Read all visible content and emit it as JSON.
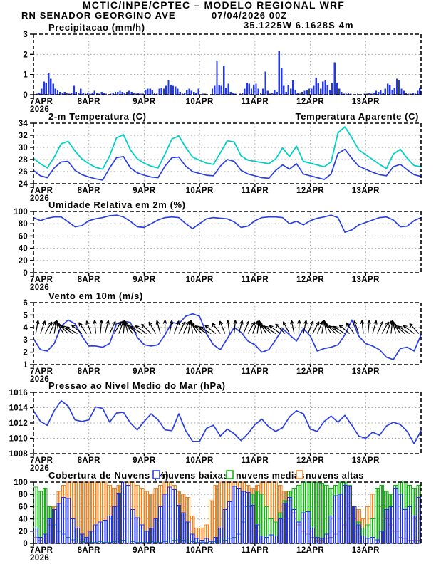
{
  "header": {
    "title": "MCTIC/INPE/CPTEC – MODELO REGIONAL WRF",
    "station": "RN SENADOR GEORGINO AVE",
    "run_datetime": "07/04/2026 00Z",
    "coords": "35.1225W 6.1628S 4m"
  },
  "colors": {
    "header_blue": "#2323e0",
    "orange_text": "#f07d1e",
    "line_blue": "#2b3fe0",
    "cyan": "#00cfc3",
    "bar_blue": "#2438e2",
    "cloud_blue": "#2333dd",
    "cloud_green": "#14b414",
    "green_text": "#00b400",
    "cloud_orange": "#f08424",
    "grid": "#a0a0a0",
    "axis": "#000000"
  },
  "x_axis": {
    "day_labels": [
      "7APR",
      "8APR",
      "9APR",
      "10APR",
      "11APR",
      "12APR",
      "13APR"
    ],
    "year": "2026",
    "total_hours": 168
  },
  "chart_data": [
    {
      "type": "bar",
      "title": "Precipitacao (mm/h)",
      "ylim": [
        0,
        3
      ],
      "yticks": [
        0,
        1,
        2,
        3
      ],
      "step_hours": 1,
      "values": [
        0,
        0.05,
        0.1,
        0.3,
        0.65,
        0.6,
        1.1,
        0.8,
        0.55,
        0.3,
        0.25,
        0.15,
        0.1,
        0.15,
        0.1,
        0.05,
        0.1,
        0.45,
        0.15,
        0.1,
        0.3,
        0.1,
        0.05,
        0.1,
        0.05,
        0.1,
        0.2,
        0.1,
        0.05,
        0.15,
        0.1,
        0.05,
        0,
        0.05,
        0.1,
        0.15,
        0.15,
        0.2,
        0.15,
        0.1,
        0.15,
        0.2,
        0.15,
        0.1,
        0.05,
        0.1,
        0.05,
        0.05,
        0.25,
        0.3,
        0.3,
        0.25,
        0.1,
        0.05,
        0.3,
        0.35,
        0.3,
        0.45,
        0.75,
        0.5,
        0.45,
        0.4,
        0.3,
        0.15,
        0.05,
        0.1,
        0.25,
        0.3,
        0.2,
        0.15,
        0.1,
        0.3,
        0,
        0.05,
        0.05,
        0,
        0,
        0.3,
        0.45,
        1.7,
        0.5,
        0.45,
        1.45,
        0.35,
        0.55,
        0.15,
        0.1,
        0.05,
        0,
        0.05,
        0.1,
        0.3,
        0.6,
        0.55,
        0.3,
        0.5,
        0.55,
        0.3,
        0.1,
        0.3,
        1.15,
        0.2,
        0.05,
        0.1,
        0.25,
        0.15,
        2.15,
        1.3,
        0.45,
        0.15,
        0.5,
        0.3,
        0.7,
        0.25,
        0.1,
        0.05,
        0.15,
        0.2,
        0.25,
        0.3,
        0.3,
        0.45,
        0.85,
        0.6,
        0.3,
        0.65,
        0.7,
        0.5,
        0.25,
        0.6,
        1.6,
        0.6,
        0.3,
        0.15,
        0.05,
        0.05,
        0.1,
        0.05,
        0,
        0,
        0.05,
        0,
        0,
        0.05,
        0.05,
        0.1,
        0.05,
        0.1,
        0.2,
        0.15,
        0.25,
        0.1,
        0.3,
        0.55,
        0.5,
        0.25,
        0.35,
        0.8,
        0.75,
        0.3,
        0.2,
        0.1,
        0.05,
        0.05,
        0.1,
        0.05,
        0.2,
        0.35
      ]
    },
    {
      "type": "line",
      "title": "2-m Temperatura (C)",
      "title_right": "Temperatura Aparente (C)",
      "ylim": [
        24,
        34
      ],
      "yticks": [
        24,
        26,
        28,
        30,
        32,
        34
      ],
      "step_hours": 3,
      "series": [
        {
          "name": "temperatura-2m",
          "color": "line_blue",
          "values": [
            26.2,
            25.3,
            25.0,
            26.6,
            27.6,
            27.7,
            26.2,
            25.5,
            25.1,
            24.8,
            24.6,
            26.6,
            28.3,
            28.5,
            26.6,
            25.8,
            25.4,
            25.1,
            25.0,
            26.9,
            28.3,
            28.4,
            26.9,
            26.0,
            25.7,
            25.4,
            25.3,
            26.9,
            28.0,
            27.7,
            26.2,
            25.6,
            25.3,
            25.0,
            24.9,
            26.2,
            27.1,
            26.4,
            27.3,
            25.6,
            25.3,
            25.0,
            24.7,
            25.6,
            29.0,
            29.7,
            28.2,
            26.9,
            26.4,
            25.9,
            25.5,
            25.3,
            26.8,
            27.2,
            26.3,
            25.5,
            25.2
          ]
        },
        {
          "name": "temperatura-aparente",
          "color": "cyan",
          "values": [
            28.2,
            27.3,
            26.6,
            28.4,
            30.6,
            31.0,
            29.4,
            28.1,
            27.3,
            26.7,
            26.4,
            28.6,
            31.6,
            32.1,
            29.6,
            28.1,
            27.4,
            26.9,
            26.6,
            28.9,
            31.4,
            31.9,
            30.0,
            28.4,
            27.9,
            27.4,
            27.2,
            29.1,
            31.1,
            30.9,
            28.6,
            27.9,
            27.7,
            27.5,
            27.3,
            28.1,
            29.9,
            28.5,
            30.2,
            27.7,
            27.4,
            27.1,
            26.8,
            27.6,
            32.4,
            33.4,
            31.6,
            29.6,
            28.8,
            28.0,
            27.2,
            26.5,
            28.9,
            29.7,
            28.2,
            27.0,
            26.8
          ]
        }
      ]
    },
    {
      "type": "line",
      "title": "Umidade Relativa em 2m (%)",
      "ylim": [
        0,
        100
      ],
      "yticks": [
        0,
        20,
        40,
        60,
        80,
        100
      ],
      "step_hours": 3,
      "series": [
        {
          "name": "umidade-relativa",
          "color": "line_blue",
          "values": [
            90,
            85,
            89,
            91,
            91,
            83,
            75,
            77,
            85,
            88,
            90,
            93,
            94,
            91,
            84,
            75,
            74,
            80,
            86,
            90,
            91,
            90,
            80,
            72,
            80,
            88,
            90,
            89,
            88,
            83,
            74,
            76,
            85,
            90,
            91,
            91,
            90,
            80,
            84,
            78,
            85,
            89,
            91,
            94,
            90,
            66,
            70,
            78,
            82,
            86,
            90,
            91,
            86,
            75,
            76,
            85,
            90
          ]
        }
      ]
    },
    {
      "type": "line",
      "title": "Vento em 10m (m/s)",
      "ylim": [
        1,
        6
      ],
      "yticks": [
        1,
        2,
        3,
        4,
        5,
        6
      ],
      "step_hours": 3,
      "series": [
        {
          "name": "velocidade-vento",
          "color": "line_blue",
          "values": [
            3.1,
            2.2,
            2.1,
            2.7,
            4.1,
            4.6,
            4.3,
            3.3,
            2.5,
            2.5,
            2.4,
            2.7,
            4.3,
            4.5,
            4.4,
            3.2,
            2.6,
            2.5,
            2.6,
            3.4,
            4.4,
            4.3,
            4.9,
            5.1,
            4.9,
            3.5,
            2.6,
            2.2,
            3.1,
            4.0,
            3.6,
            2.9,
            2.6,
            2.0,
            2.2,
            3.0,
            3.9,
            3.4,
            2.9,
            3.9,
            3.3,
            2.1,
            2.3,
            2.4,
            2.6,
            3.4,
            4.6,
            3.3,
            2.7,
            2.5,
            2.2,
            1.6,
            1.4,
            2.3,
            2.4,
            2.1,
            3.4
          ]
        }
      ],
      "arrows": {
        "anchor_value": 3.5,
        "step_hours": 2,
        "angles_deg": [
          10,
          20,
          30,
          25,
          10,
          -10,
          -30,
          -45,
          -55,
          -60,
          -50,
          -35,
          -20,
          -5,
          5,
          15,
          25,
          30,
          20,
          5,
          -15,
          -35,
          -50,
          -58,
          -55,
          -45,
          -30,
          -15,
          0,
          10,
          20,
          28,
          25,
          12,
          -8,
          -28,
          -45,
          -55,
          -60,
          -52,
          -38,
          -22,
          -8,
          5,
          15,
          24,
          30,
          22,
          8,
          -12,
          -32,
          -48,
          -57,
          -54,
          -44,
          -28,
          -12,
          2,
          12,
          22,
          28,
          24,
          10,
          -10,
          -30,
          -46,
          -56,
          -58,
          -50,
          -36,
          -20,
          -6,
          6,
          16,
          25,
          30,
          21,
          6,
          -14,
          -34,
          -49,
          -57,
          -53,
          -42
        ]
      }
    },
    {
      "type": "line",
      "title": "Pressao ao Nivel Medio do Mar (hPa)",
      "ylim": [
        1008,
        1016
      ],
      "yticks": [
        1008,
        1010,
        1012,
        1014,
        1016
      ],
      "step_hours": 3,
      "series": [
        {
          "name": "pressao-nivel-mar",
          "color": "line_blue",
          "values": [
            1013.6,
            1012.2,
            1011.7,
            1013.6,
            1014.9,
            1014.2,
            1012.4,
            1012.2,
            1012.4,
            1014.1,
            1013.9,
            1012.1,
            1013.3,
            1013.4,
            1012.0,
            1011.1,
            1012.2,
            1013.2,
            1012.4,
            1011.1,
            1011.0,
            1013.2,
            1011.0,
            1009.6,
            1009.6,
            1011.3,
            1011.7,
            1010.3,
            1011.2,
            1010.6,
            1009.7,
            1010.6,
            1011.8,
            1012.5,
            1011.5,
            1010.9,
            1011.4,
            1012.8,
            1013.6,
            1013.2,
            1011.2,
            1010.9,
            1012.2,
            1012.9,
            1012.1,
            1013.0,
            1011.7,
            1010.3,
            1010.0,
            1010.8,
            1010.4,
            1011.6,
            1012.1,
            1011.8,
            1010.9,
            1009.3,
            1011.0
          ]
        }
      ]
    },
    {
      "type": "multibar",
      "title": "Cobertura de Nuvens (%)",
      "ylim": [
        0,
        100
      ],
      "yticks": [
        0,
        20,
        40,
        60,
        80,
        100
      ],
      "step_hours": 2,
      "legend": [
        {
          "label": "nuvens baixas",
          "color": "cloud_blue"
        },
        {
          "label": "nuvens medias",
          "color": "cloud_green"
        },
        {
          "label": "nuvens altas",
          "color": "cloud_orange"
        }
      ],
      "series": [
        {
          "name": "nuvens-altas",
          "color": "cloud_orange",
          "values": [
            10,
            5,
            8,
            30,
            60,
            85,
            95,
            100,
            100,
            100,
            100,
            100,
            100,
            100,
            100,
            100,
            95,
            90,
            95,
            100,
            100,
            100,
            95,
            90,
            85,
            80,
            90,
            95,
            100,
            100,
            95,
            85,
            80,
            75,
            45,
            25,
            25,
            30,
            70,
            95,
            100,
            100,
            100,
            100,
            100,
            100,
            95,
            90,
            95,
            100,
            100,
            100,
            100,
            95,
            85,
            70,
            50,
            30,
            20,
            15,
            10,
            5,
            5,
            8,
            10,
            15,
            20,
            30,
            45,
            60,
            55,
            40,
            60,
            80,
            85,
            60,
            40,
            30,
            20,
            10,
            8,
            5,
            5,
            5
          ]
        },
        {
          "name": "nuvens-medias",
          "color": "cloud_green",
          "values": [
            92,
            85,
            90,
            60,
            30,
            20,
            15,
            10,
            6,
            4,
            3,
            2,
            2,
            2,
            3,
            2,
            2,
            3,
            4,
            5,
            4,
            3,
            2,
            2,
            2,
            3,
            2,
            2,
            3,
            4,
            5,
            6,
            5,
            4,
            3,
            2,
            2,
            2,
            3,
            3,
            4,
            5,
            8,
            10,
            15,
            35,
            60,
            80,
            85,
            80,
            60,
            40,
            35,
            50,
            70,
            85,
            90,
            95,
            100,
            100,
            100,
            100,
            98,
            95,
            90,
            95,
            100,
            100,
            95,
            60,
            35,
            25,
            30,
            40,
            90,
            95,
            85,
            80,
            95,
            100,
            100,
            95,
            90,
            95
          ]
        },
        {
          "name": "nuvens-baixas",
          "color": "cloud_blue",
          "values": [
            25,
            10,
            15,
            40,
            55,
            65,
            75,
            73,
            40,
            25,
            15,
            10,
            20,
            30,
            35,
            38,
            45,
            60,
            82,
            100,
            95,
            55,
            42,
            30,
            20,
            25,
            40,
            60,
            80,
            92,
            88,
            62,
            50,
            35,
            15,
            8,
            5,
            8,
            4,
            10,
            25,
            55,
            68,
            93,
            90,
            85,
            83,
            62,
            30,
            12,
            10,
            14,
            12,
            40,
            65,
            75,
            55,
            35,
            50,
            52,
            25,
            10,
            8,
            15,
            45,
            78,
            80,
            95,
            93,
            60,
            30,
            12,
            8,
            10,
            6,
            20,
            55,
            60,
            90,
            80,
            55,
            60,
            45,
            75
          ]
        }
      ]
    }
  ]
}
